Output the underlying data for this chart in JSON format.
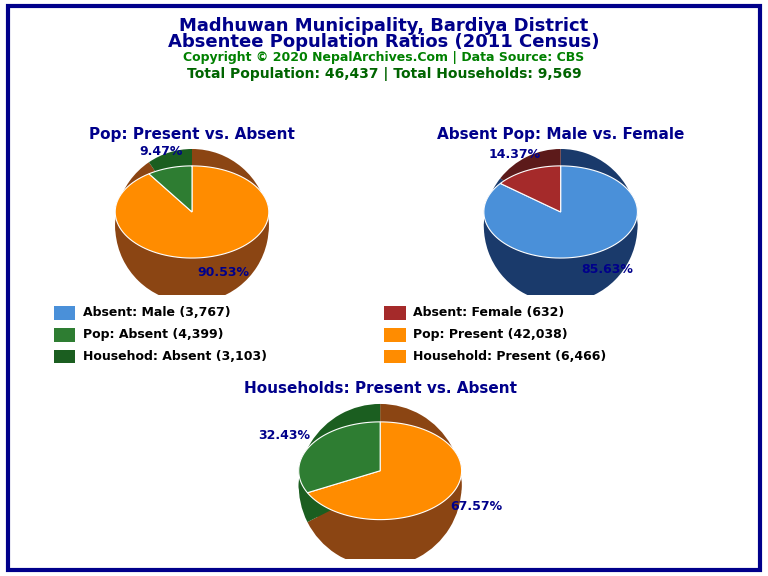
{
  "title_line1": "Madhuwan Municipality, Bardiya District",
  "title_line2": "Absentee Population Ratios (2011 Census)",
  "title_color": "#00008B",
  "copyright_text": "Copyright © 2020 NepalArchives.Com | Data Source: CBS",
  "copyright_color": "#008000",
  "stats_text": "Total Population: 46,437 | Total Households: 9,569",
  "stats_color": "#006400",
  "pie1_title": "Pop: Present vs. Absent",
  "pie1_values": [
    90.53,
    9.47
  ],
  "pie1_colors": [
    "#FF8C00",
    "#2E7D32"
  ],
  "pie1_shadow": [
    "#8B4513",
    "#1B5E20"
  ],
  "pie1_labels": [
    "90.53%",
    "9.47%"
  ],
  "pie1_startangle": 90,
  "pie2_title": "Absent Pop: Male vs. Female",
  "pie2_values": [
    85.63,
    14.37
  ],
  "pie2_colors": [
    "#4A90D9",
    "#A52A2A"
  ],
  "pie2_shadow": [
    "#1A3A6B",
    "#5C1A1A"
  ],
  "pie2_labels": [
    "85.63%",
    "14.37%"
  ],
  "pie2_startangle": 90,
  "pie3_title": "Households: Present vs. Absent",
  "pie3_values": [
    67.57,
    32.43
  ],
  "pie3_colors": [
    "#FF8C00",
    "#2E7D32"
  ],
  "pie3_shadow": [
    "#8B4513",
    "#1B5E20"
  ],
  "pie3_labels": [
    "67.57%",
    "32.43%"
  ],
  "pie3_startangle": 90,
  "subtitle_color": "#00008B",
  "pct_label_color": "#00008B",
  "legend_items": [
    {
      "label": "Absent: Male (3,767)",
      "color": "#4A90D9"
    },
    {
      "label": "Absent: Female (632)",
      "color": "#A52A2A"
    },
    {
      "label": "Pop: Absent (4,399)",
      "color": "#2E7D32"
    },
    {
      "label": "Pop: Present (42,038)",
      "color": "#FF8C00"
    },
    {
      "label": "Househod: Absent (3,103)",
      "color": "#1B5E20"
    },
    {
      "label": "Household: Present (6,466)",
      "color": "#FF8C00"
    }
  ],
  "bg_color": "#FFFFFF",
  "border_color": "#00008B"
}
